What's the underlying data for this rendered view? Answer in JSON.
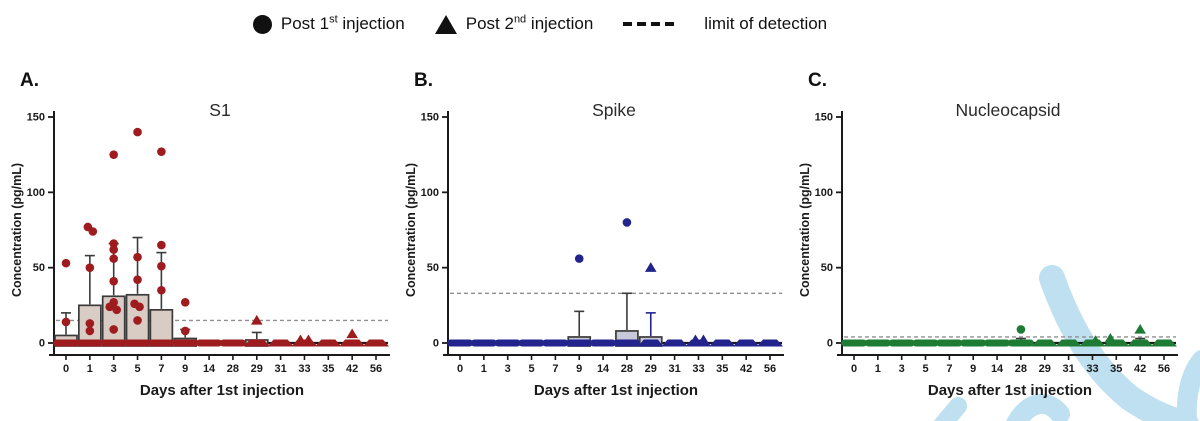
{
  "page": {
    "background": "#ffffff"
  },
  "legend": {
    "post1": {
      "pre": "Post 1",
      "sup": "st",
      "post": " injection"
    },
    "post2": {
      "pre": "Post 2",
      "sup": "nd",
      "post": " injection"
    },
    "lod_label": "limit of detection"
  },
  "watermark": {
    "color": "#BEE0F1"
  },
  "chart_data": {
    "type": "box-scatter",
    "categories": [
      "0",
      "1",
      "3",
      "5",
      "7",
      "9",
      "14",
      "28",
      "29",
      "31",
      "33",
      "35",
      "42",
      "56"
    ],
    "xlabel": "Days after 1st injection",
    "ylabel": "Concentration (pg/mL)",
    "ylim": [
      0,
      150
    ],
    "yticks": [
      0,
      50,
      100,
      150
    ],
    "post2_day_indices": [
      8,
      9,
      10,
      11,
      12,
      13
    ],
    "panels": [
      {
        "panel_label": "A.",
        "title": "S1",
        "marker_color": "#9E1B1E",
        "box_fill": "#D9CCC5",
        "box_border": "#3B3B3B",
        "lod": 15,
        "lod_color": "#8F8F8F",
        "boxes": [
          {
            "day_index": 0,
            "q3": 5,
            "whisker_high": 20
          },
          {
            "day_index": 1,
            "q3": 25,
            "whisker_high": 58
          },
          {
            "day_index": 2,
            "q3": 31,
            "whisker_high": 66
          },
          {
            "day_index": 3,
            "q3": 32,
            "whisker_high": 70
          },
          {
            "day_index": 4,
            "q3": 22,
            "whisker_high": 60
          },
          {
            "day_index": 5,
            "q3": 3,
            "whisker_high": 9
          },
          {
            "day_index": 8,
            "q3": 2,
            "whisker_high": 7
          }
        ],
        "circles_post1": [
          [
            0,
            53
          ],
          [
            0,
            14
          ],
          [
            1,
            77,
            -2
          ],
          [
            1,
            74,
            3
          ],
          [
            1,
            50
          ],
          [
            1,
            13
          ],
          [
            1,
            8
          ],
          [
            2,
            125
          ],
          [
            2,
            66
          ],
          [
            2,
            62
          ],
          [
            2,
            56
          ],
          [
            2,
            41
          ],
          [
            2,
            27
          ],
          [
            2,
            24,
            -4
          ],
          [
            2,
            22,
            3
          ],
          [
            2,
            9
          ],
          [
            3,
            140
          ],
          [
            3,
            57
          ],
          [
            3,
            42
          ],
          [
            3,
            26,
            -3
          ],
          [
            3,
            24,
            2
          ],
          [
            3,
            15
          ],
          [
            4,
            127
          ],
          [
            4,
            65
          ],
          [
            4,
            51
          ],
          [
            4,
            35
          ],
          [
            5,
            27
          ],
          [
            5,
            8
          ]
        ],
        "triangles_post2": [
          [
            8,
            15
          ],
          [
            10,
            2,
            -4
          ],
          [
            10,
            2,
            4
          ],
          [
            12,
            6
          ]
        ]
      },
      {
        "panel_label": "B.",
        "title": "Spike",
        "marker_color": "#23238E",
        "box_fill": "#C7C8D8",
        "box_border": "#3B3B3B",
        "lod": 33,
        "lod_color": "#8F8F8F",
        "boxes": [
          {
            "day_index": 5,
            "q3": 4,
            "whisker_high": 21
          },
          {
            "day_index": 7,
            "q3": 8,
            "whisker_high": 33
          },
          {
            "day_index": 8,
            "q3": 4,
            "whisker_high": 20,
            "whisker_color": "#23238E"
          }
        ],
        "circles_post1": [
          [
            5,
            56
          ],
          [
            7,
            80
          ]
        ],
        "triangles_post2": [
          [
            8,
            50
          ],
          [
            10,
            2,
            -3
          ],
          [
            10,
            2,
            5
          ]
        ]
      },
      {
        "panel_label": "C.",
        "title": "Nucleocapsid",
        "marker_color": "#1E7B33",
        "box_fill": "#CBD8CB",
        "box_border": "#3B3B3B",
        "lod": 4,
        "lod_color": "#8F8F8F",
        "boxes": [
          {
            "day_index": 7,
            "q3": 0,
            "whisker_high": 3
          },
          {
            "day_index": 12,
            "q3": 0,
            "whisker_high": 3
          }
        ],
        "circles_post1": [
          [
            7,
            9
          ]
        ],
        "triangles_post2": [
          [
            10,
            1.5,
            3
          ],
          [
            11,
            3,
            -6
          ],
          [
            12,
            9
          ]
        ]
      }
    ]
  }
}
